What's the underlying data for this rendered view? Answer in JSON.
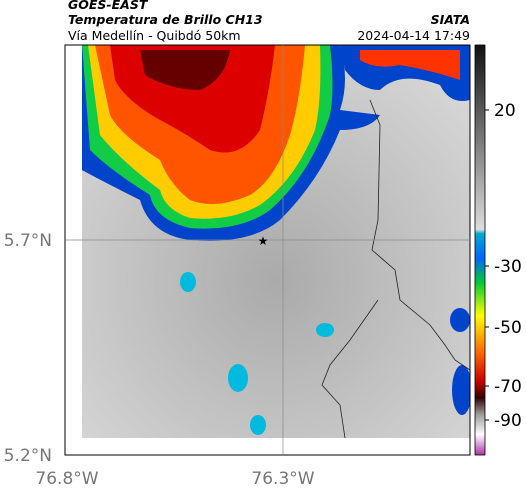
{
  "header": {
    "source": "GOES-EAST",
    "title": "Temperatura de Brillo CH13",
    "agency": "SIATA",
    "route": "Vía Medellín - Quibdó 50km",
    "datetime": "2024-04-14 17:49"
  },
  "map": {
    "lat_labels": [
      "5.7°N",
      "5.2°N"
    ],
    "lon_labels": [
      "76.8°W",
      "76.3°W"
    ]
  },
  "colorbar": {
    "ticks": [
      20,
      -30,
      -50,
      -70,
      -90
    ]
  }
}
